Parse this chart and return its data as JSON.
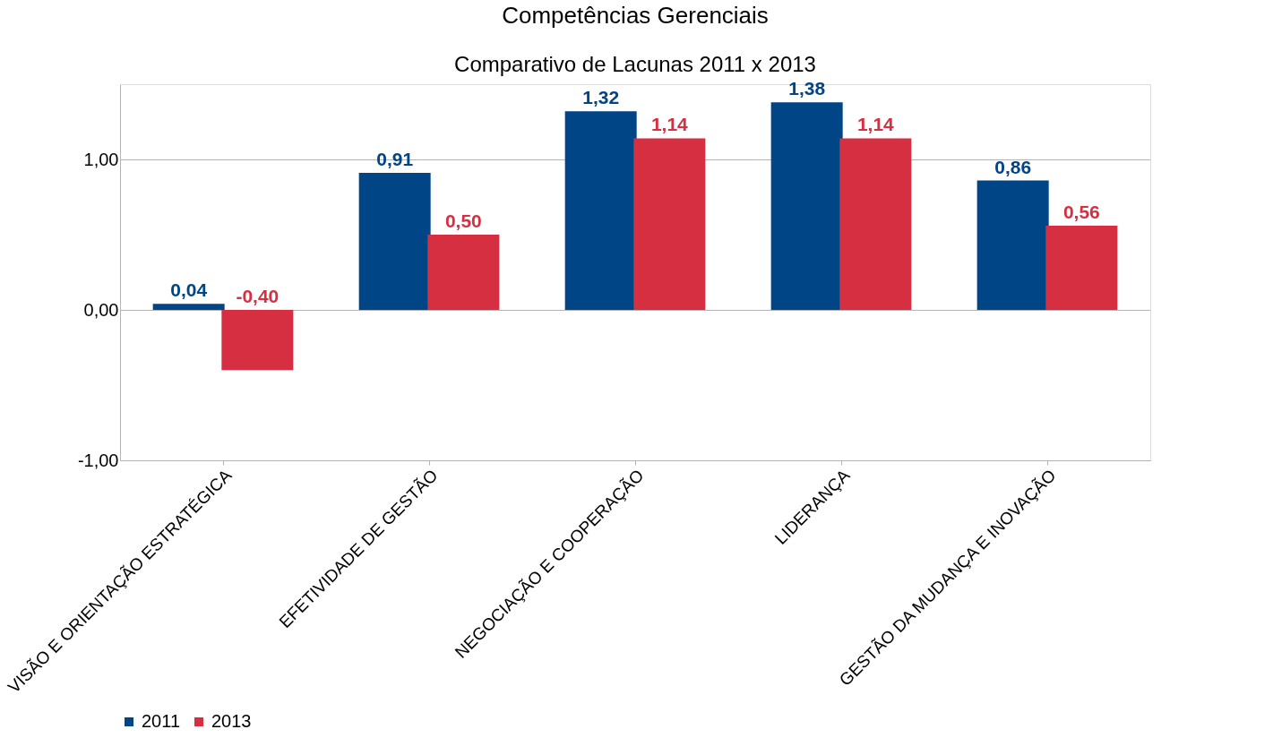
{
  "chart_data": {
    "type": "bar",
    "title": "Competências Gerenciais",
    "subtitle": "Comparativo de Lacunas 2011 x 2013",
    "categories": [
      "VISÃO E ORIENTAÇÃO ESTRATÉGICA",
      "EFETIVIDADE DE GESTÃO",
      "NEGOCIAÇÃO E COOPERAÇÃO",
      "LIDERANÇA",
      "GESTÃO DA MUDANÇA E INOVAÇÃO"
    ],
    "series": [
      {
        "name": "2011",
        "color": "#004586",
        "values": [
          0.04,
          0.91,
          1.32,
          1.38,
          0.86
        ],
        "value_labels": [
          "0,04",
          "0,91",
          "1,32",
          "1,38",
          "0,86"
        ]
      },
      {
        "name": "2013",
        "color": "#d72f42",
        "values": [
          -0.4,
          0.5,
          1.14,
          1.14,
          0.56
        ],
        "value_labels": [
          "-0,40",
          "0,50",
          "1,14",
          "1,14",
          "0,56"
        ]
      }
    ],
    "ylim": [
      -1,
      1.5
    ],
    "yticks": [
      {
        "value": -1,
        "label": "-1,00"
      },
      {
        "value": 0,
        "label": "0,00"
      },
      {
        "value": 1,
        "label": "1,00"
      }
    ],
    "grid": "y",
    "legend": "bottom"
  }
}
